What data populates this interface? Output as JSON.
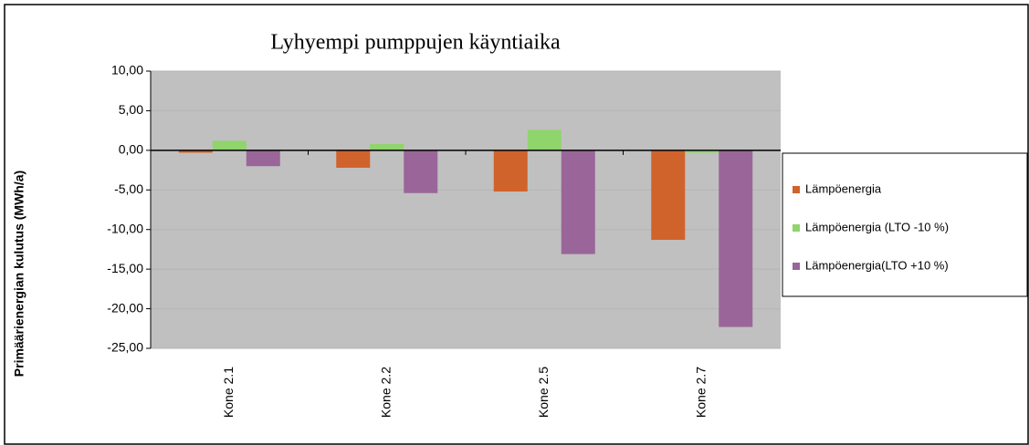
{
  "chart_data": {
    "type": "bar",
    "title": "Lyhyempi pumppujen käyntiaika",
    "y_label": "Primäärienergian kulutus (MWh/a)",
    "categories": [
      "Kone 2.1",
      "Kone 2.2",
      "Kone 2.5",
      "Kone 2.7"
    ],
    "series": [
      {
        "name": "Lämpöenergia",
        "color": "#d0632c",
        "values": [
          -0.3,
          -2.2,
          -5.2,
          -11.3
        ]
      },
      {
        "name": "Lämpöenergia (LTO -10 %)",
        "color": "#90d46c",
        "values": [
          1.2,
          0.8,
          2.6,
          -0.3
        ]
      },
      {
        "name": "Lämpöenergia(LTO +10 %)",
        "color": "#9a6699",
        "values": [
          -2.0,
          -5.4,
          -13.1,
          -22.3
        ]
      }
    ],
    "ylim": [
      -25,
      10
    ],
    "yticks": [
      {
        "value": 10,
        "label": "10,00"
      },
      {
        "value": 5,
        "label": "5,00"
      },
      {
        "value": 0,
        "label": "0,00"
      },
      {
        "value": -5,
        "label": "-5,00"
      },
      {
        "value": -10,
        "label": "-10,00"
      },
      {
        "value": -15,
        "label": "-15,00"
      },
      {
        "value": -20,
        "label": "-20,00"
      },
      {
        "value": -25,
        "label": "-25,00"
      }
    ],
    "grid": true,
    "legend": "right"
  }
}
